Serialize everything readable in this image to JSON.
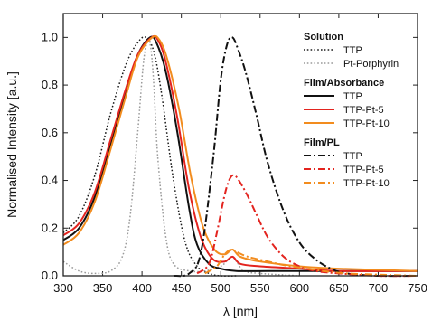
{
  "chart_data": {
    "type": "line",
    "xlabel": "λ [nm]",
    "ylabel": "Normalised Intensity [a.u.]",
    "xlim": [
      300,
      750
    ],
    "ylim": [
      0,
      1.1
    ],
    "x_ticks": [
      300,
      350,
      400,
      450,
      500,
      550,
      600,
      650,
      700,
      750
    ],
    "x_tick_labels": [
      "300",
      "350",
      "400",
      "450",
      "500",
      "550",
      "600",
      "650",
      "700",
      "750"
    ],
    "y_ticks": [
      0,
      0.2,
      0.4,
      0.6,
      0.8,
      1.0
    ],
    "y_tick_labels": [
      "0.0",
      "0.2",
      "0.4",
      "0.6",
      "0.8",
      "1.0"
    ],
    "legend_position": "top-right",
    "legend_groups": [
      {
        "heading": "Solution",
        "entries": [
          "TTP",
          "Pt-Porphyrin"
        ]
      },
      {
        "heading": "Film/Absorbance",
        "entries": [
          "TTP",
          "TTP-Pt-5",
          "TTP-Pt-10"
        ]
      },
      {
        "heading": "Film/PL",
        "entries": [
          "TTP",
          "TTP-Pt-5",
          "TTP-Pt-10"
        ]
      }
    ],
    "series": [
      {
        "name": "TTP",
        "group": "Solution",
        "color": "#1a1a1a",
        "dash": "dotted",
        "x": [
          300,
          320,
          340,
          360,
          380,
          395,
          405,
          415,
          425,
          440,
          455,
          470,
          485,
          500,
          520
        ],
        "y": [
          0.18,
          0.25,
          0.42,
          0.68,
          0.89,
          0.98,
          1.0,
          0.94,
          0.76,
          0.4,
          0.14,
          0.04,
          0.01,
          0.0,
          0.0
        ]
      },
      {
        "name": "Pt-Porphyrin",
        "group": "Solution",
        "color": "#9a9a9a",
        "dash": "dotted",
        "x": [
          300,
          320,
          340,
          360,
          375,
          385,
          395,
          402,
          407,
          411,
          415,
          420,
          430,
          440,
          460,
          480,
          500,
          510,
          515,
          520,
          530,
          550,
          600
        ],
        "y": [
          0.06,
          0.02,
          0.01,
          0.02,
          0.08,
          0.25,
          0.62,
          0.9,
          0.98,
          0.96,
          0.8,
          0.5,
          0.17,
          0.05,
          0.02,
          0.02,
          0.04,
          0.07,
          0.08,
          0.06,
          0.02,
          0.01,
          0.0
        ]
      },
      {
        "name": "TTP",
        "group": "Film/Absorbance",
        "color": "#111111",
        "dash": "solid",
        "x": [
          300,
          320,
          340,
          360,
          380,
          395,
          410,
          418,
          430,
          445,
          460,
          470,
          485,
          500,
          520,
          560,
          650,
          750
        ],
        "y": [
          0.15,
          0.2,
          0.33,
          0.55,
          0.78,
          0.93,
          1.0,
          0.98,
          0.86,
          0.6,
          0.28,
          0.13,
          0.05,
          0.03,
          0.02,
          0.02,
          0.02,
          0.02
        ]
      },
      {
        "name": "TTP-Pt-5",
        "group": "Film/Absorbance",
        "color": "#e3241f",
        "dash": "solid",
        "x": [
          300,
          320,
          340,
          360,
          380,
          395,
          412,
          420,
          430,
          445,
          460,
          475,
          490,
          505,
          515,
          525,
          550,
          600,
          650,
          750
        ],
        "y": [
          0.17,
          0.22,
          0.35,
          0.57,
          0.79,
          0.93,
          1.0,
          0.99,
          0.9,
          0.66,
          0.36,
          0.16,
          0.07,
          0.06,
          0.08,
          0.05,
          0.04,
          0.03,
          0.02,
          0.02
        ]
      },
      {
        "name": "TTP-Pt-10",
        "group": "Film/Absorbance",
        "color": "#f28c1e",
        "dash": "solid",
        "x": [
          300,
          320,
          340,
          360,
          380,
          395,
          413,
          422,
          432,
          447,
          462,
          477,
          492,
          505,
          515,
          525,
          550,
          600,
          650,
          750
        ],
        "y": [
          0.13,
          0.18,
          0.31,
          0.53,
          0.76,
          0.92,
          1.0,
          0.99,
          0.91,
          0.7,
          0.42,
          0.21,
          0.11,
          0.09,
          0.11,
          0.08,
          0.06,
          0.04,
          0.03,
          0.02
        ]
      },
      {
        "name": "TTP",
        "group": "Film/PL",
        "color": "#111111",
        "dash": "dashdot",
        "x": [
          440,
          460,
          475,
          490,
          500,
          508,
          515,
          522,
          532,
          545,
          560,
          580,
          600,
          620,
          640,
          660,
          700,
          750
        ],
        "y": [
          0.0,
          0.01,
          0.1,
          0.48,
          0.82,
          0.97,
          1.0,
          0.95,
          0.85,
          0.68,
          0.47,
          0.27,
          0.14,
          0.07,
          0.03,
          0.01,
          0.0,
          0.0
        ]
      },
      {
        "name": "TTP-Pt-5",
        "group": "Film/PL",
        "color": "#e3241f",
        "dash": "dashdot",
        "x": [
          470,
          485,
          495,
          505,
          512,
          518,
          525,
          535,
          545,
          560,
          580,
          600,
          620,
          650,
          700,
          750
        ],
        "y": [
          0.01,
          0.05,
          0.18,
          0.34,
          0.41,
          0.42,
          0.39,
          0.33,
          0.26,
          0.16,
          0.08,
          0.04,
          0.02,
          0.01,
          0.0,
          0.0
        ]
      },
      {
        "name": "TTP-Pt-10",
        "group": "Film/PL",
        "color": "#f28c1e",
        "dash": "dashdot",
        "x": [
          480,
          495,
          505,
          513,
          520,
          530,
          540,
          560,
          580,
          600,
          630,
          660,
          700,
          750
        ],
        "y": [
          0.01,
          0.04,
          0.09,
          0.11,
          0.1,
          0.085,
          0.075,
          0.06,
          0.045,
          0.035,
          0.02,
          0.01,
          0.005,
          0.0
        ]
      }
    ]
  }
}
